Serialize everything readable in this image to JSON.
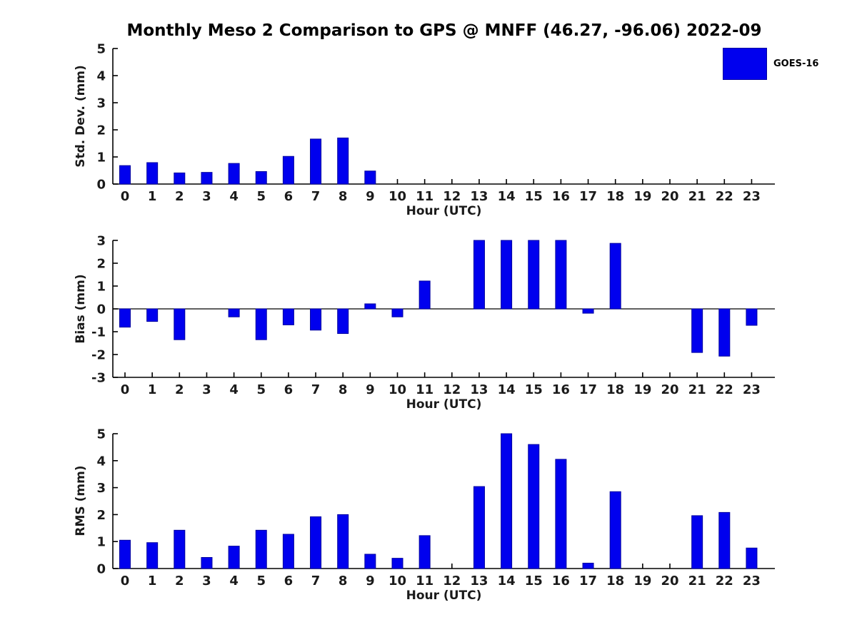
{
  "title": "Monthly Meso 2 Comparison to GPS @ MNFF (46.27, -96.06) 2022-09",
  "legend": {
    "label": "GOES-16",
    "color": "#0000ee",
    "position": "top-right-inside-first-subplot"
  },
  "colors": {
    "bar": "#0000ee",
    "bar_edge": "#0000a0",
    "axis": "#000000",
    "text": "#1a1a1a",
    "background": "#ffffff"
  },
  "chart_data": [
    {
      "type": "bar",
      "id": "std-dev",
      "ylabel": "Std. Dev. (mm)",
      "xlabel": "Hour (UTC)",
      "series_name": "GOES-16",
      "categories": [
        "0",
        "1",
        "2",
        "3",
        "4",
        "5",
        "6",
        "7",
        "8",
        "9",
        "10",
        "11",
        "12",
        "13",
        "14",
        "15",
        "16",
        "17",
        "18",
        "19",
        "20",
        "21",
        "22",
        "23"
      ],
      "values": [
        0.68,
        0.79,
        0.41,
        0.43,
        0.76,
        0.46,
        1.02,
        1.66,
        1.7,
        0.48,
        null,
        null,
        null,
        null,
        null,
        null,
        null,
        null,
        null,
        null,
        null,
        null,
        null,
        null
      ],
      "ylim": [
        0,
        5
      ],
      "yticks": [
        "0",
        "1",
        "2",
        "3",
        "4",
        "5"
      ],
      "grid": false,
      "zero_line": false
    },
    {
      "type": "bar",
      "id": "bias",
      "ylabel": "Bias (mm)",
      "xlabel": "Hour (UTC)",
      "series_name": "GOES-16",
      "categories": [
        "0",
        "1",
        "2",
        "3",
        "4",
        "5",
        "6",
        "7",
        "8",
        "9",
        "10",
        "11",
        "12",
        "13",
        "14",
        "15",
        "16",
        "17",
        "18",
        "19",
        "20",
        "21",
        "22",
        "23"
      ],
      "values": [
        -0.8,
        -0.55,
        -1.35,
        null,
        -0.35,
        -1.35,
        -0.7,
        -0.93,
        -1.08,
        0.22,
        -0.35,
        1.22,
        null,
        3.0,
        3.0,
        3.0,
        3.0,
        -0.19,
        2.87,
        null,
        null,
        -1.91,
        -2.07,
        -0.72
      ],
      "ylim": [
        -3,
        3
      ],
      "yticks": [
        "-3",
        "-2",
        "-1",
        "0",
        "1",
        "2",
        "3"
      ],
      "grid": false,
      "zero_line": true
    },
    {
      "type": "bar",
      "id": "rms",
      "ylabel": "RMS (mm)",
      "xlabel": "Hour (UTC)",
      "series_name": "GOES-16",
      "categories": [
        "0",
        "1",
        "2",
        "3",
        "4",
        "5",
        "6",
        "7",
        "8",
        "9",
        "10",
        "11",
        "12",
        "13",
        "14",
        "15",
        "16",
        "17",
        "18",
        "19",
        "20",
        "21",
        "22",
        "23"
      ],
      "values": [
        1.05,
        0.96,
        1.42,
        0.41,
        0.83,
        1.42,
        1.27,
        1.92,
        2.0,
        0.53,
        0.38,
        1.22,
        null,
        3.04,
        5.0,
        4.6,
        4.05,
        0.2,
        2.85,
        null,
        null,
        1.96,
        2.08,
        0.76
      ],
      "ylim": [
        0,
        5
      ],
      "yticks": [
        "0",
        "1",
        "2",
        "3",
        "4",
        "5"
      ],
      "grid": false,
      "zero_line": false
    }
  ]
}
